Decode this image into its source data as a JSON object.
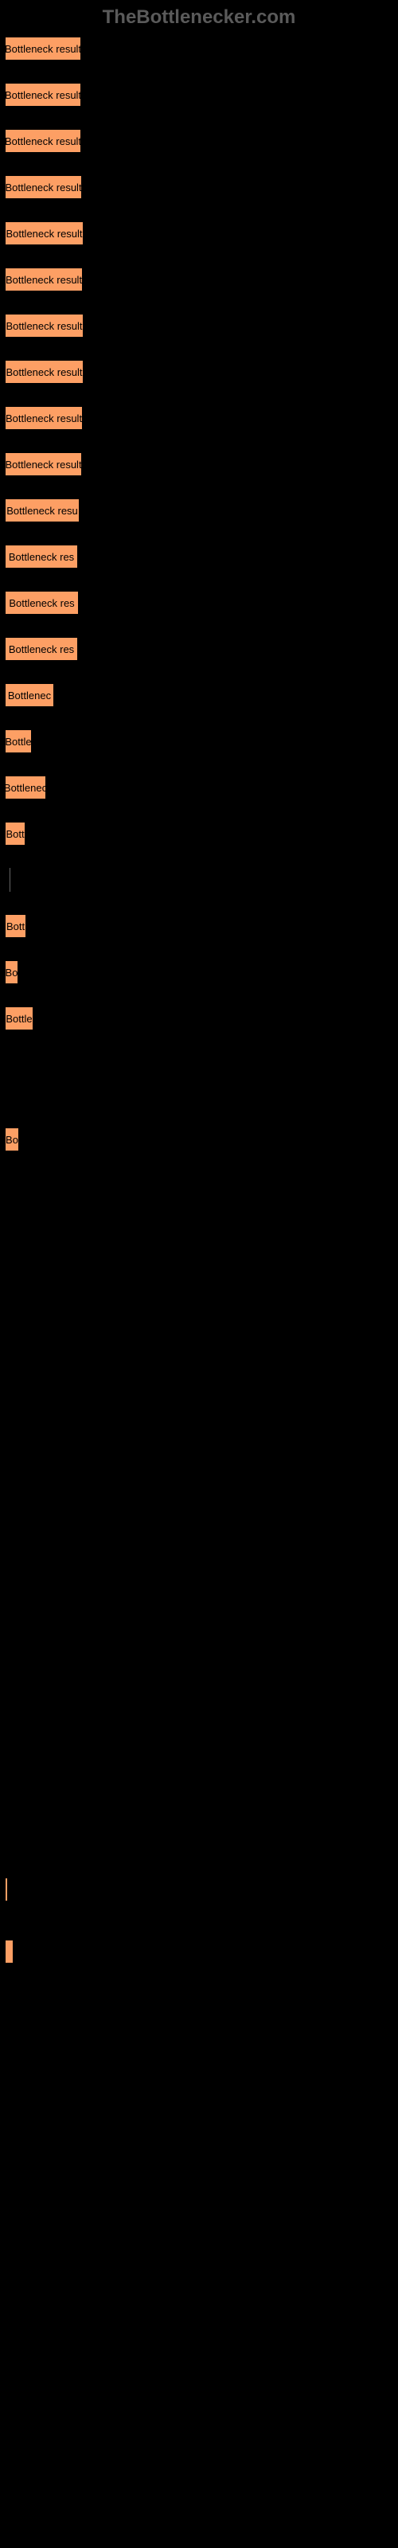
{
  "header": {
    "text": "TheBottlenecker.com",
    "color": "#5a5a5a"
  },
  "chart": {
    "type": "bar",
    "bar_color": "#fd9f64",
    "bar_border_color": "#000000",
    "background_color": "#000000",
    "label_color": "#000000",
    "label_fontsize": 13,
    "divider_color": "#666666",
    "bars": [
      {
        "width": 96,
        "label": "Bottleneck result",
        "show_label": true
      },
      {
        "width": 96,
        "label": "Bottleneck result",
        "show_label": true
      },
      {
        "width": 96,
        "label": "Bottleneck result",
        "show_label": true
      },
      {
        "width": 97,
        "label": "Bottleneck result",
        "show_label": true
      },
      {
        "width": 99,
        "label": "Bottleneck result",
        "show_label": true
      },
      {
        "width": 98,
        "label": "Bottleneck result",
        "show_label": true
      },
      {
        "width": 99,
        "label": "Bottleneck result",
        "show_label": true
      },
      {
        "width": 99,
        "label": "Bottleneck result",
        "show_label": true
      },
      {
        "width": 98,
        "label": "Bottleneck result",
        "show_label": true
      },
      {
        "width": 97,
        "label": "Bottleneck result",
        "show_label": true
      },
      {
        "width": 94,
        "label": "Bottleneck resu",
        "show_label": true
      },
      {
        "width": 92,
        "label": "Bottleneck res",
        "show_label": true
      },
      {
        "width": 93,
        "label": "Bottleneck res",
        "show_label": true
      },
      {
        "width": 92,
        "label": "Bottleneck res",
        "show_label": true
      },
      {
        "width": 62,
        "label": "Bottlenec",
        "show_label": true
      },
      {
        "width": 34,
        "label": "Bottle",
        "show_label": true
      },
      {
        "width": 52,
        "label": "Bottlenec",
        "show_label": true
      },
      {
        "width": 26,
        "label": "Bott",
        "show_label": true
      },
      {
        "width": 0,
        "label": "",
        "show_label": false,
        "divider_only": true
      },
      {
        "width": 27,
        "label": "Bott",
        "show_label": true
      },
      {
        "width": 17,
        "label": "Bo",
        "show_label": true
      },
      {
        "width": 36,
        "label": "Bottle",
        "show_label": true,
        "gap_before": "sm"
      },
      {
        "width": 0,
        "label": "",
        "show_label": false,
        "empty": true
      },
      {
        "width": 18,
        "label": "Bo",
        "show_label": true
      }
    ],
    "last_bars": [
      {
        "width": 4,
        "label": "",
        "show_label": false
      },
      {
        "width": 11,
        "label": "",
        "show_label": false
      }
    ]
  }
}
